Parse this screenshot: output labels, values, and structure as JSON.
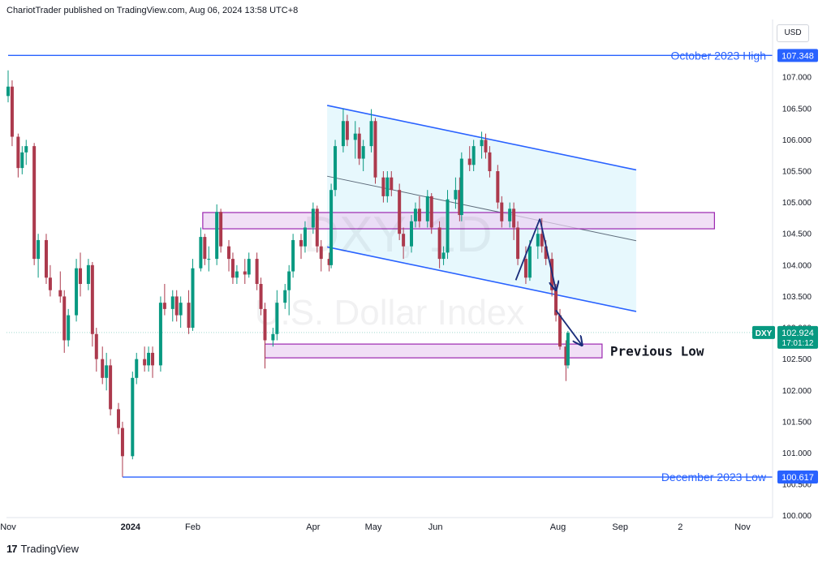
{
  "header": {
    "publisher": "ChariotTrader published on TradingView.com, Aug 06, 2024 13:58 UTC+8"
  },
  "currency": "USD",
  "footer": {
    "brand": "TradingView"
  },
  "watermark": {
    "symbol": "DXY, 1D",
    "name": "U.S. Dollar Index"
  },
  "colors": {
    "up": "#089981",
    "down": "#ac3a4d",
    "level": "#2962ff",
    "channel_fill": "#dff5fc",
    "channel_line": "#2962ff",
    "zone_fill": "#ebd2f2",
    "zone_border": "#9c27b0",
    "arrow": "#1a2d7a"
  },
  "chart_data": {
    "type": "candlestick",
    "symbol": "DXY",
    "timeframe": "1D",
    "y_ticks": [
      "107.000",
      "106.500",
      "106.000",
      "105.500",
      "105.000",
      "104.500",
      "104.000",
      "103.500",
      "103.000",
      "102.500",
      "102.000",
      "101.500",
      "101.000",
      "100.500",
      "100.000"
    ],
    "y_tick_values": [
      107.0,
      106.5,
      106.0,
      105.5,
      105.0,
      104.5,
      104.0,
      103.5,
      103.0,
      102.5,
      102.0,
      101.5,
      101.0,
      100.5,
      100.0
    ],
    "ylim": [
      99.97,
      107.65
    ],
    "x_ticks": [
      {
        "label": "Nov",
        "date": "2023-11-01"
      },
      {
        "label": "2024",
        "date": "2024-01-01"
      },
      {
        "label": "Feb",
        "date": "2024-02-01"
      },
      {
        "label": "Apr",
        "date": "2024-04-01"
      },
      {
        "label": "May",
        "date": "2024-05-01"
      },
      {
        "label": "Jun",
        "date": "2024-06-01"
      },
      {
        "label": "Aug",
        "date": "2024-08-01"
      },
      {
        "label": "Sep",
        "date": "2024-09-01"
      },
      {
        "label": "2",
        "date": "2024-10-01"
      },
      {
        "label": "Nov",
        "date": "2024-11-01"
      }
    ],
    "horizontal_levels": [
      {
        "label": "October 2023 High",
        "value": 107.348,
        "value_text": "107.348",
        "start": "2023-11-01"
      },
      {
        "label": "December 2023 Low",
        "value": 100.617,
        "value_text": "100.617",
        "start": "2023-12-28"
      }
    ],
    "zones": [
      {
        "label": "",
        "low": 104.58,
        "high": 104.84,
        "start": "2024-02-06",
        "end": "2024-10-18"
      },
      {
        "label": "Previous Low",
        "low": 102.52,
        "high": 102.74,
        "start": "2024-03-08",
        "end": "2024-08-23"
      }
    ],
    "channel": {
      "upper": [
        {
          "date": "2024-04-08",
          "value": 106.55
        },
        {
          "date": "2024-09-09",
          "value": 105.52
        }
      ],
      "lower": [
        {
          "date": "2024-04-08",
          "value": 104.29
        },
        {
          "date": "2024-09-09",
          "value": 103.26
        }
      ],
      "middle": [
        {
          "date": "2024-04-08",
          "value": 105.42
        },
        {
          "date": "2024-09-09",
          "value": 104.39
        }
      ]
    },
    "arrows": [
      {
        "from": {
          "date": "2024-07-11",
          "value": 103.76
        },
        "to": {
          "date": "2024-07-23",
          "value": 104.74
        }
      },
      {
        "from": {
          "date": "2024-07-23",
          "value": 104.74
        },
        "to": {
          "date": "2024-07-31",
          "value": 103.6
        }
      },
      {
        "from": {
          "date": "2024-07-31",
          "value": 103.28
        },
        "to": {
          "date": "2024-08-13",
          "value": 102.72
        }
      }
    ],
    "last_price": {
      "symbol": "DXY",
      "value": 102.924,
      "value_text": "102.924",
      "countdown": "17:01:12"
    },
    "candles": [
      [
        "2023-11-01",
        106.7,
        107.11,
        106.6,
        106.85
      ],
      [
        "2023-11-03",
        106.85,
        106.95,
        105.9,
        106.05
      ],
      [
        "2023-11-06",
        106.05,
        106.1,
        105.4,
        105.55
      ],
      [
        "2023-11-08",
        105.55,
        105.9,
        105.45,
        105.8
      ],
      [
        "2023-11-10",
        105.8,
        106.0,
        105.6,
        105.9
      ],
      [
        "2023-11-14",
        105.9,
        105.95,
        104.0,
        104.1
      ],
      [
        "2023-11-16",
        104.1,
        104.5,
        103.8,
        104.4
      ],
      [
        "2023-11-20",
        104.4,
        104.5,
        103.7,
        103.8
      ],
      [
        "2023-11-22",
        103.8,
        104.0,
        103.5,
        103.6
      ],
      [
        "2023-11-27",
        103.6,
        103.9,
        103.4,
        103.5
      ],
      [
        "2023-11-29",
        103.5,
        103.6,
        102.6,
        102.8
      ],
      [
        "2023-12-01",
        102.8,
        103.3,
        102.7,
        103.2
      ],
      [
        "2023-12-05",
        103.2,
        104.1,
        103.1,
        103.95
      ],
      [
        "2023-12-07",
        103.95,
        104.2,
        103.5,
        103.7
      ],
      [
        "2023-12-11",
        103.7,
        104.1,
        103.6,
        104.0
      ],
      [
        "2023-12-13",
        104.0,
        104.05,
        102.7,
        102.9
      ],
      [
        "2023-12-15",
        102.9,
        103.0,
        102.3,
        102.5
      ],
      [
        "2023-12-18",
        102.5,
        102.7,
        102.1,
        102.2
      ],
      [
        "2023-12-20",
        102.2,
        102.6,
        102.0,
        102.4
      ],
      [
        "2023-12-22",
        102.4,
        102.5,
        101.6,
        101.7
      ],
      [
        "2023-12-26",
        101.7,
        101.8,
        101.3,
        101.4
      ],
      [
        "2023-12-28",
        101.4,
        101.5,
        100.62,
        100.95
      ],
      [
        "2024-01-02",
        100.95,
        102.3,
        100.9,
        102.2
      ],
      [
        "2024-01-04",
        102.2,
        102.6,
        102.1,
        102.5
      ],
      [
        "2024-01-08",
        102.5,
        102.7,
        102.3,
        102.4
      ],
      [
        "2024-01-10",
        102.4,
        102.7,
        102.3,
        102.6
      ],
      [
        "2024-01-12",
        102.6,
        102.7,
        102.2,
        102.4
      ],
      [
        "2024-01-16",
        102.4,
        103.5,
        102.3,
        103.4
      ],
      [
        "2024-01-18",
        103.4,
        103.7,
        103.2,
        103.3
      ],
      [
        "2024-01-22",
        103.3,
        103.6,
        103.1,
        103.5
      ],
      [
        "2024-01-24",
        103.5,
        103.6,
        103.1,
        103.2
      ],
      [
        "2024-01-26",
        103.2,
        103.5,
        103.0,
        103.4
      ],
      [
        "2024-01-30",
        103.4,
        103.6,
        102.9,
        103.0
      ],
      [
        "2024-02-01",
        103.0,
        104.1,
        102.95,
        103.95
      ],
      [
        "2024-02-05",
        103.95,
        104.6,
        103.9,
        104.45
      ],
      [
        "2024-02-07",
        104.45,
        104.5,
        104.0,
        104.1
      ],
      [
        "2024-02-09",
        104.1,
        104.3,
        103.9,
        104.1
      ],
      [
        "2024-02-13",
        104.1,
        104.97,
        104.0,
        104.85
      ],
      [
        "2024-02-15",
        104.85,
        104.9,
        104.2,
        104.3
      ],
      [
        "2024-02-19",
        104.3,
        104.4,
        103.9,
        104.1
      ],
      [
        "2024-02-21",
        104.1,
        104.2,
        103.7,
        103.8
      ],
      [
        "2024-02-23",
        103.8,
        104.0,
        103.7,
        103.9
      ],
      [
        "2024-02-27",
        103.9,
        104.1,
        103.7,
        103.85
      ],
      [
        "2024-02-29",
        103.85,
        104.2,
        103.8,
        104.1
      ],
      [
        "2024-03-04",
        104.1,
        104.2,
        103.6,
        103.7
      ],
      [
        "2024-03-06",
        103.7,
        103.8,
        103.2,
        103.3
      ],
      [
        "2024-03-08",
        103.3,
        103.4,
        102.35,
        102.8
      ],
      [
        "2024-03-12",
        102.8,
        103.0,
        102.7,
        102.9
      ],
      [
        "2024-03-14",
        102.9,
        103.6,
        102.8,
        103.4
      ],
      [
        "2024-03-18",
        103.4,
        103.7,
        103.3,
        103.6
      ],
      [
        "2024-03-20",
        103.6,
        104.0,
        103.2,
        103.9
      ],
      [
        "2024-03-22",
        103.9,
        104.5,
        103.8,
        104.4
      ],
      [
        "2024-03-26",
        104.4,
        104.5,
        104.1,
        104.3
      ],
      [
        "2024-03-28",
        104.3,
        104.7,
        104.2,
        104.6
      ],
      [
        "2024-04-01",
        104.6,
        105.0,
        104.5,
        104.9
      ],
      [
        "2024-04-03",
        104.9,
        104.95,
        104.2,
        104.3
      ],
      [
        "2024-04-05",
        104.3,
        104.4,
        103.9,
        104.1
      ],
      [
        "2024-04-09",
        104.1,
        104.2,
        103.9,
        104.0
      ],
      [
        "2024-04-10",
        104.0,
        105.3,
        103.95,
        105.2
      ],
      [
        "2024-04-12",
        105.2,
        106.0,
        105.1,
        105.9
      ],
      [
        "2024-04-16",
        105.9,
        106.5,
        105.8,
        106.3
      ],
      [
        "2024-04-18",
        106.3,
        106.4,
        105.9,
        106.0
      ],
      [
        "2024-04-22",
        106.0,
        106.3,
        105.7,
        106.1
      ],
      [
        "2024-04-24",
        106.1,
        106.2,
        105.6,
        105.7
      ],
      [
        "2024-04-26",
        105.7,
        106.0,
        105.5,
        105.9
      ],
      [
        "2024-04-30",
        105.9,
        106.49,
        105.8,
        106.3
      ],
      [
        "2024-05-02",
        106.3,
        106.35,
        105.3,
        105.4
      ],
      [
        "2024-05-06",
        105.4,
        105.5,
        105.0,
        105.1
      ],
      [
        "2024-05-08",
        105.1,
        105.5,
        105.0,
        105.4
      ],
      [
        "2024-05-10",
        105.4,
        105.5,
        105.1,
        105.2
      ],
      [
        "2024-05-14",
        105.2,
        105.3,
        104.4,
        104.5
      ],
      [
        "2024-05-16",
        104.5,
        104.6,
        104.1,
        104.3
      ],
      [
        "2024-05-20",
        104.3,
        104.8,
        104.2,
        104.7
      ],
      [
        "2024-05-22",
        104.7,
        105.0,
        104.6,
        104.9
      ],
      [
        "2024-05-24",
        104.9,
        105.1,
        104.6,
        104.7
      ],
      [
        "2024-05-28",
        104.7,
        105.2,
        104.6,
        105.1
      ],
      [
        "2024-05-30",
        105.1,
        105.15,
        104.5,
        104.6
      ],
      [
        "2024-06-03",
        104.6,
        104.7,
        103.95,
        104.1
      ],
      [
        "2024-06-05",
        104.1,
        104.3,
        104.0,
        104.2
      ],
      [
        "2024-06-07",
        104.2,
        105.2,
        104.1,
        105.05
      ],
      [
        "2024-06-11",
        105.05,
        105.4,
        104.9,
        105.2
      ],
      [
        "2024-06-13",
        105.2,
        105.4,
        104.7,
        104.8
      ],
      [
        "2024-06-14",
        104.8,
        105.8,
        104.7,
        105.7
      ],
      [
        "2024-06-18",
        105.7,
        105.9,
        105.5,
        105.6
      ],
      [
        "2024-06-20",
        105.6,
        106.0,
        105.5,
        105.9
      ],
      [
        "2024-06-24",
        105.9,
        106.13,
        105.7,
        106.0
      ],
      [
        "2024-06-26",
        106.0,
        106.1,
        105.7,
        105.8
      ],
      [
        "2024-06-28",
        105.8,
        105.9,
        105.4,
        105.5
      ],
      [
        "2024-07-02",
        105.5,
        105.6,
        104.9,
        105.0
      ],
      [
        "2024-07-04",
        105.0,
        105.1,
        104.6,
        104.7
      ],
      [
        "2024-07-08",
        104.7,
        105.0,
        104.6,
        104.9
      ],
      [
        "2024-07-10",
        104.9,
        105.0,
        104.4,
        104.6
      ],
      [
        "2024-07-12",
        104.6,
        104.7,
        104.0,
        104.1
      ],
      [
        "2024-07-16",
        104.1,
        104.3,
        103.7,
        103.8
      ],
      [
        "2024-07-18",
        103.8,
        104.4,
        103.75,
        104.3
      ],
      [
        "2024-07-22",
        104.3,
        104.6,
        104.1,
        104.5
      ],
      [
        "2024-07-24",
        104.5,
        104.75,
        104.2,
        104.3
      ],
      [
        "2024-07-26",
        104.3,
        104.4,
        104.0,
        104.1
      ],
      [
        "2024-07-29",
        104.1,
        104.2,
        103.5,
        103.6
      ],
      [
        "2024-07-31",
        103.6,
        103.7,
        103.1,
        103.2
      ],
      [
        "2024-08-02",
        103.2,
        103.3,
        102.65,
        102.7
      ],
      [
        "2024-08-05",
        102.7,
        102.8,
        102.15,
        102.4
      ],
      [
        "2024-08-06",
        102.4,
        102.95,
        102.35,
        102.92
      ]
    ]
  }
}
